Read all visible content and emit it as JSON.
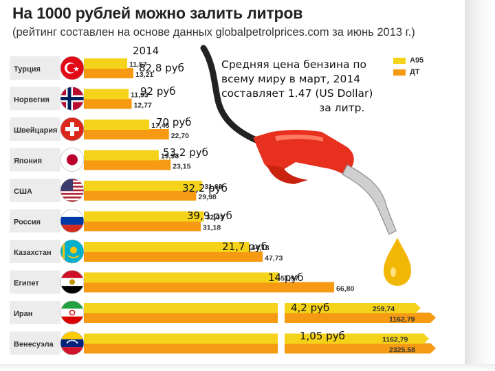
{
  "title": "На 1000 рублей можно залить литров",
  "subtitle": "(рейтинг составлен на основе данных globalpetrolprices.com за июнь 2013 г.)",
  "note": {
    "year": "2014",
    "line1": "Средняя цена бензина по",
    "line2": "всему миру в март, 2014",
    "line3": "составляет 1.47 (US Dollar)",
    "line4": "за  литр."
  },
  "colors": {
    "a95": "#f5d31a",
    "dt": "#f59a12",
    "label_bg": "#ececec",
    "pump": "#e8301e",
    "hose": "#222222",
    "nozzle": "#cccccc",
    "drop": "#f2b705"
  },
  "chart_data": {
    "type": "bar",
    "orientation": "horizontal",
    "categories": [
      "Турция",
      "Норвегия",
      "Швейцария",
      "Япония",
      "США",
      "Россия",
      "Казахстан",
      "Египет",
      "Иран",
      "Венесуэла"
    ],
    "series": [
      {
        "name": "А95",
        "values": [
          11.57,
          11.93,
          17.45,
          19.98,
          31.6,
          32.03,
          44.13,
          51.97,
          259.74,
          1162.79
        ]
      },
      {
        "name": "ДТ",
        "values": [
          13.21,
          12.77,
          22.7,
          23.15,
          29.98,
          31.18,
          47.73,
          66.8,
          1162.79,
          2325.58
        ]
      }
    ],
    "value_labels_a95": [
      "11,57",
      "11,93",
      "17,45",
      "19,98",
      "31,60",
      "32,03",
      "44,13",
      "51,97",
      "259,74",
      "1162,79"
    ],
    "value_labels_dt": [
      "13,21",
      "12,77",
      "22,70",
      "23,15",
      "29,98",
      "31,18",
      "47,73",
      "66,80",
      "1162,79",
      "2325,58"
    ],
    "price_annotations": [
      "82,8  руб",
      "92 руб",
      "70 руб",
      "53,2 руб",
      "32,2 руб",
      "39,9 руб",
      "21,7 руб",
      "14 руб",
      "4,2 руб",
      "1,05 руб"
    ],
    "flags": [
      "turkey",
      "norway",
      "switzerland",
      "japan",
      "usa",
      "russia",
      "kazakhstan",
      "egypt",
      "iran",
      "venezuela"
    ],
    "legend_position": "top-right",
    "grid": false,
    "broken_bars": [
      "Иран",
      "Венесуэла"
    ]
  }
}
